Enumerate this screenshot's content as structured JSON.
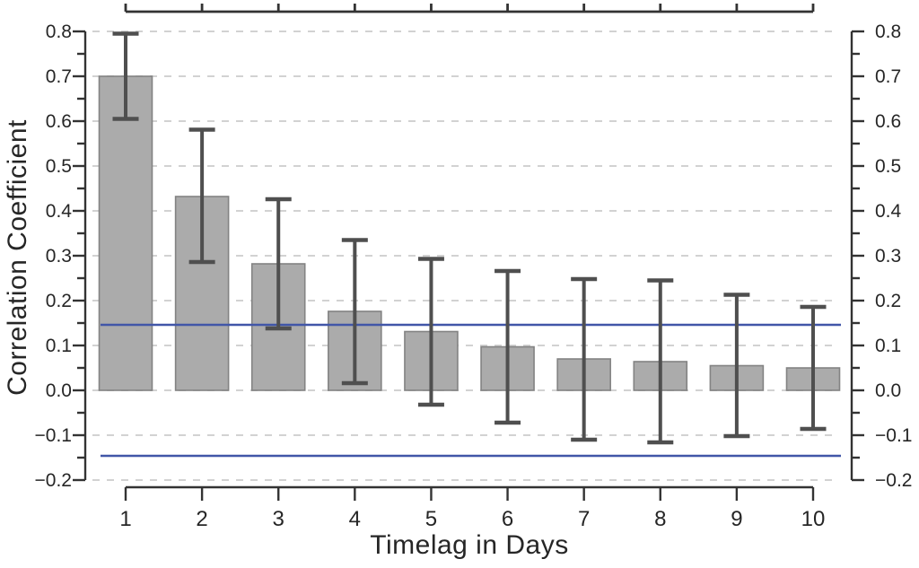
{
  "figure": {
    "description": "Bar chart of correlation coefficient versus timelag in days, with error bars and blue significance-threshold lines"
  },
  "chart_data": {
    "type": "bar",
    "title": "",
    "xlabel": "Timelag in Days",
    "ylabel": "Correlation Coefficient",
    "categories": [
      "1",
      "2",
      "3",
      "4",
      "5",
      "6",
      "7",
      "8",
      "9",
      "10"
    ],
    "values": [
      0.7,
      0.432,
      0.282,
      0.176,
      0.131,
      0.097,
      0.07,
      0.064,
      0.055,
      0.05
    ],
    "error_low": [
      0.605,
      0.286,
      0.138,
      0.016,
      -0.032,
      -0.072,
      -0.11,
      -0.116,
      -0.102,
      -0.086
    ],
    "error_high": [
      0.795,
      0.581,
      0.426,
      0.335,
      0.293,
      0.266,
      0.248,
      0.245,
      0.213,
      0.186
    ],
    "significance_lines": [
      0.146,
      -0.146
    ],
    "ylim": [
      -0.2,
      0.8
    ],
    "y_major_tick_step": 0.1,
    "y_minor_tick_step": 0.05,
    "y_tick_labels": [
      "−0.2",
      "−0.1",
      "0.0",
      "0.1",
      "0.2",
      "0.3",
      "0.4",
      "0.5",
      "0.6",
      "0.7",
      "0.8"
    ],
    "grid": "horizontal dashed gridlines at every 0.1, on",
    "legend": "none",
    "axes": {
      "left_axis": true,
      "right_axis": true,
      "top_axis": true,
      "bottom_axis": true
    },
    "colors": {
      "bar_fill": "#ababab",
      "bar_border": "#838383",
      "error_bar": "#4f4f4f",
      "significance_line": "#4156a8",
      "gridline": "#d2d2d2",
      "axis": "#333333",
      "text": "#262626",
      "background": "#ffffff"
    }
  }
}
